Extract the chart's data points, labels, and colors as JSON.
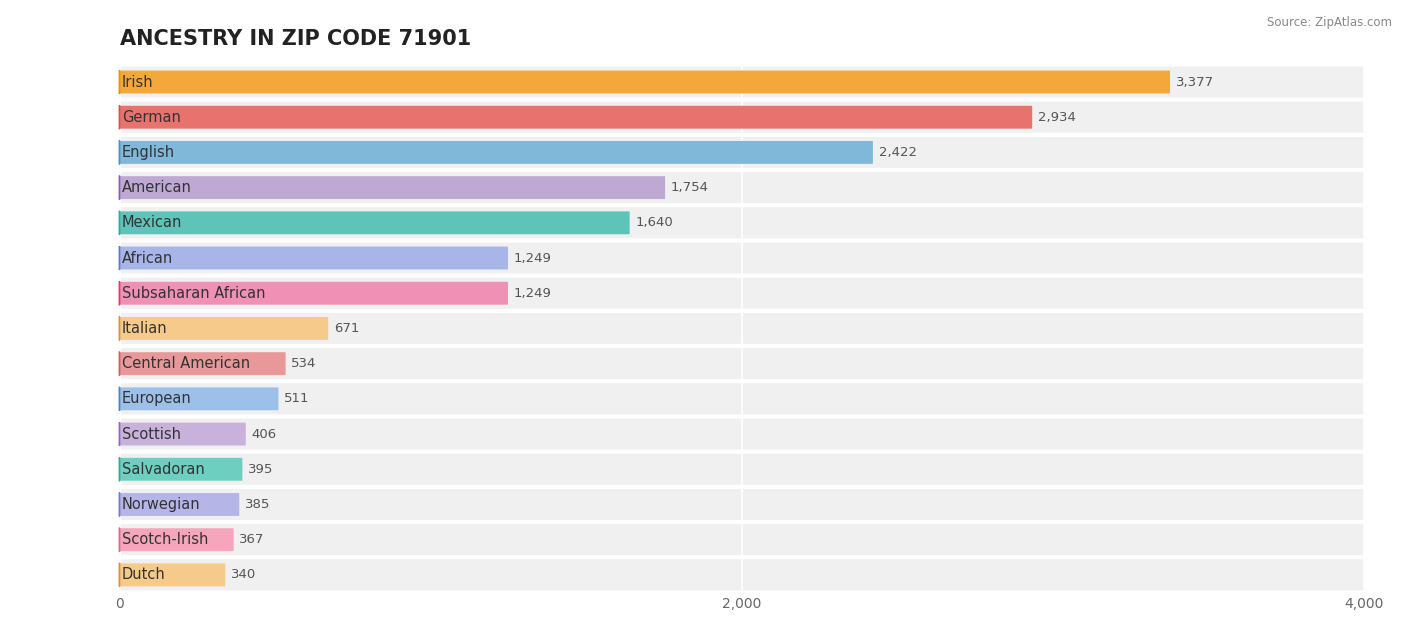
{
  "title": "ANCESTRY IN ZIP CODE 71901",
  "source": "Source: ZipAtlas.com",
  "categories": [
    "Irish",
    "German",
    "English",
    "American",
    "Mexican",
    "African",
    "Subsaharan African",
    "Italian",
    "Central American",
    "European",
    "Scottish",
    "Salvadoran",
    "Norwegian",
    "Scotch-Irish",
    "Dutch"
  ],
  "values": [
    3377,
    2934,
    2422,
    1754,
    1640,
    1249,
    1249,
    671,
    534,
    511,
    406,
    395,
    385,
    367,
    340
  ],
  "bar_colors": [
    "#F5A83A",
    "#E8736E",
    "#7FB8D8",
    "#C0A8D5",
    "#5EC4BA",
    "#A8B5E8",
    "#F090B5",
    "#F5CA8A",
    "#E89898",
    "#9DC0E8",
    "#C8B2DC",
    "#6DCFC0",
    "#B5B5E8",
    "#F5A5BC",
    "#F5CA8A"
  ],
  "dot_colors": [
    "#E8920A",
    "#D55555",
    "#5090C0",
    "#8860B8",
    "#38A898",
    "#6878C8",
    "#E03870",
    "#D89040",
    "#D06060",
    "#5080C0",
    "#9068C0",
    "#38A898",
    "#7878C8",
    "#E06888",
    "#D89040"
  ],
  "row_bg_color": "#f0f0f0",
  "xlim": [
    0,
    4000
  ],
  "xticks": [
    0,
    2000,
    4000
  ],
  "background_color": "#ffffff",
  "title_fontsize": 15,
  "label_fontsize": 10.5,
  "value_fontsize": 9.5
}
